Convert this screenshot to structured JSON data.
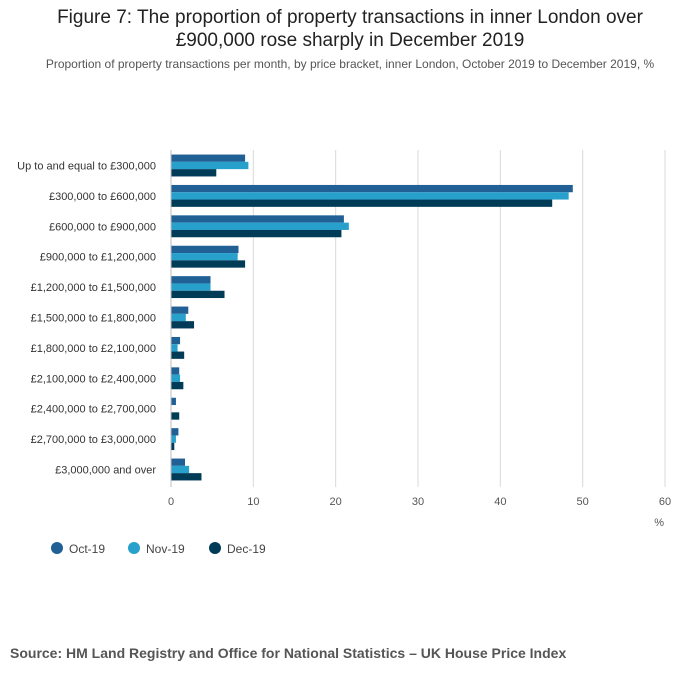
{
  "title": "Figure 7: The proportion of property transactions in inner London over £900,000 rose sharply in December 2019",
  "subtitle": "Proportion of property transactions per month, by price bracket, inner London, October 2019 to December 2019, %",
  "source": "Source: HM Land Registry and Office for National Statistics – UK House Price Index",
  "colors": {
    "oct": "#206095",
    "nov": "#27a0cc",
    "dec": "#003c57",
    "grid": "#d9d9d9",
    "axis": "#bebebe"
  },
  "chart_data": {
    "type": "bar",
    "orientation": "horizontal",
    "categories": [
      "Up to and equal to £300,000",
      "£300,000 to £600,000",
      "£600,000 to £900,000",
      "£900,000 to £1,200,000",
      "£1,200,000 to £1,500,000",
      "£1,500,000 to £1,800,000",
      "£1,800,000 to £2,100,000",
      "£2,100,000 to £2,400,000",
      "£2,400,000 to £2,700,000",
      "£2,700,000 to £3,000,000",
      "£3,000,000 and over"
    ],
    "series": [
      {
        "name": "Oct-19",
        "values": [
          9.0,
          48.8,
          21.0,
          8.2,
          4.8,
          2.1,
          1.1,
          1.0,
          0.6,
          0.9,
          1.7
        ]
      },
      {
        "name": "Nov-19",
        "values": [
          9.4,
          48.3,
          21.6,
          8.1,
          4.8,
          1.8,
          0.8,
          1.1,
          0.0,
          0.6,
          2.2
        ]
      },
      {
        "name": "Dec-19",
        "values": [
          5.5,
          46.3,
          20.7,
          9.0,
          6.5,
          2.8,
          1.6,
          1.5,
          1.0,
          0.4,
          3.7
        ]
      }
    ],
    "xlim": [
      0,
      60
    ],
    "xticks": [
      0,
      10,
      20,
      30,
      40,
      50,
      60
    ],
    "xlabel": "%",
    "ylabel": "",
    "grid": true,
    "legend_position": "bottom-left"
  }
}
